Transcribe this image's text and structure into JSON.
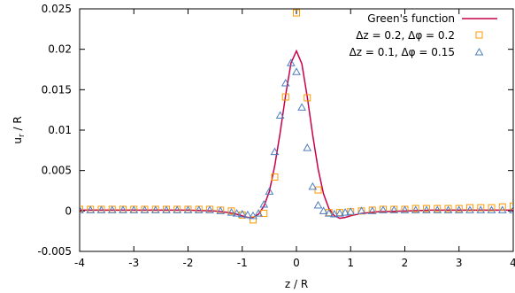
{
  "chart_data": {
    "type": "scatter",
    "xlabel": "z / R",
    "ylabel": "u",
    "ylabel_sub": "r",
    "ylabel_rest": " / R",
    "xlim": [
      -4,
      4
    ],
    "ylim": [
      -0.005,
      0.025
    ],
    "x_ticks": [
      -4,
      -3,
      -2,
      -1,
      0,
      1,
      2,
      3,
      4
    ],
    "x_tick_labels": [
      "-4",
      "-3",
      "-2",
      "-1",
      "0",
      "1",
      "2",
      "3",
      "4"
    ],
    "y_ticks": [
      -0.005,
      0,
      0.005,
      0.01,
      0.015,
      0.02,
      0.025
    ],
    "y_tick_labels": [
      "-0.005",
      "0",
      "0.005",
      "0.01",
      "0.015",
      "0.02",
      "0.025"
    ],
    "grid": false,
    "legend_position": "top-right",
    "series": [
      {
        "name": "Green's function",
        "kind": "line",
        "color": "#c8004b",
        "x": [
          -4.0,
          -3.5,
          -3.0,
          -2.5,
          -2.0,
          -1.5,
          -1.25,
          -1.1,
          -1.0,
          -0.9,
          -0.8,
          -0.7,
          -0.6,
          -0.5,
          -0.4,
          -0.3,
          -0.2,
          -0.1,
          0.0,
          0.1,
          0.2,
          0.3,
          0.4,
          0.5,
          0.6,
          0.7,
          0.8,
          0.9,
          1.0,
          1.2,
          1.5,
          2.0,
          2.5,
          3.0,
          3.5,
          4.0
        ],
        "y": [
          0.0001,
          0.0001,
          0.0001,
          0.0001,
          0.0001,
          0.0,
          -0.0002,
          -0.0004,
          -0.0006,
          -0.0008,
          -0.0008,
          -0.0004,
          0.0006,
          0.0024,
          0.0056,
          0.0097,
          0.0143,
          0.0183,
          0.0198,
          0.0182,
          0.0141,
          0.0094,
          0.0052,
          0.0021,
          0.0003,
          -0.0006,
          -0.0009,
          -0.0008,
          -0.0006,
          -0.0003,
          -0.0001,
          0.0,
          0.0001,
          0.0001,
          0.0001,
          0.0001
        ]
      },
      {
        "name": "Δz = 0.2, Δφ = 0.2",
        "kind": "markers",
        "marker": "square",
        "color": "#ff9900",
        "x": [
          -4.0,
          -3.8,
          -3.6,
          -3.4,
          -3.2,
          -3.0,
          -2.8,
          -2.6,
          -2.4,
          -2.2,
          -2.0,
          -1.8,
          -1.6,
          -1.4,
          -1.2,
          -1.0,
          -0.8,
          -0.6,
          -0.4,
          -0.2,
          0.0,
          0.2,
          0.4,
          0.6,
          0.8,
          1.0,
          1.2,
          1.4,
          1.6,
          1.8,
          2.0,
          2.2,
          2.4,
          2.6,
          2.8,
          3.0,
          3.2,
          3.4,
          3.6,
          3.8,
          4.0
        ],
        "y": [
          0.0002,
          0.0002,
          0.0002,
          0.0002,
          0.0002,
          0.0002,
          0.0002,
          0.0002,
          0.0002,
          0.0002,
          0.0002,
          0.0002,
          0.0002,
          0.0001,
          0.0,
          -0.0005,
          -0.0011,
          -0.0003,
          0.0042,
          0.0141,
          0.0245,
          0.014,
          0.0026,
          -0.0002,
          -0.0002,
          -0.0001,
          0.0,
          0.0001,
          0.0002,
          0.0002,
          0.0002,
          0.0003,
          0.0003,
          0.0003,
          0.0003,
          0.0003,
          0.0004,
          0.0004,
          0.0004,
          0.0005,
          0.0006
        ]
      },
      {
        "name": "Δz = 0.1, Δφ = 0.15",
        "kind": "markers",
        "marker": "triangle",
        "color": "#4f7fbf",
        "x": [
          -4.0,
          -3.8,
          -3.6,
          -3.4,
          -3.2,
          -3.0,
          -2.8,
          -2.6,
          -2.4,
          -2.2,
          -2.0,
          -1.8,
          -1.6,
          -1.4,
          -1.2,
          -1.1,
          -1.0,
          -0.9,
          -0.8,
          -0.7,
          -0.6,
          -0.5,
          -0.4,
          -0.3,
          -0.2,
          -0.1,
          0.0,
          0.1,
          0.2,
          0.3,
          0.4,
          0.5,
          0.6,
          0.7,
          0.8,
          0.9,
          1.0,
          1.2,
          1.4,
          1.6,
          1.8,
          2.0,
          2.2,
          2.4,
          2.6,
          2.8,
          3.0,
          3.2,
          3.4,
          3.6,
          3.8,
          4.0
        ],
        "y": [
          0.0001,
          0.0001,
          0.0001,
          0.0001,
          0.0001,
          0.0001,
          0.0001,
          0.0001,
          0.0001,
          0.0001,
          0.0001,
          0.0001,
          0.0001,
          0.0,
          -0.0002,
          -0.0003,
          -0.0004,
          -0.0005,
          -0.0006,
          -0.0003,
          0.0008,
          0.0024,
          0.0073,
          0.0118,
          0.0158,
          0.0183,
          0.0172,
          0.0128,
          0.0078,
          0.003,
          0.0007,
          0.0,
          -0.0003,
          -0.0004,
          -0.0003,
          -0.0002,
          -0.0001,
          0.0,
          0.0,
          0.0001,
          0.0001,
          0.0001,
          0.0001,
          0.0001,
          0.0001,
          0.0001,
          0.0001,
          0.0001,
          0.0001,
          0.0001,
          0.0001,
          0.0001
        ]
      }
    ]
  }
}
